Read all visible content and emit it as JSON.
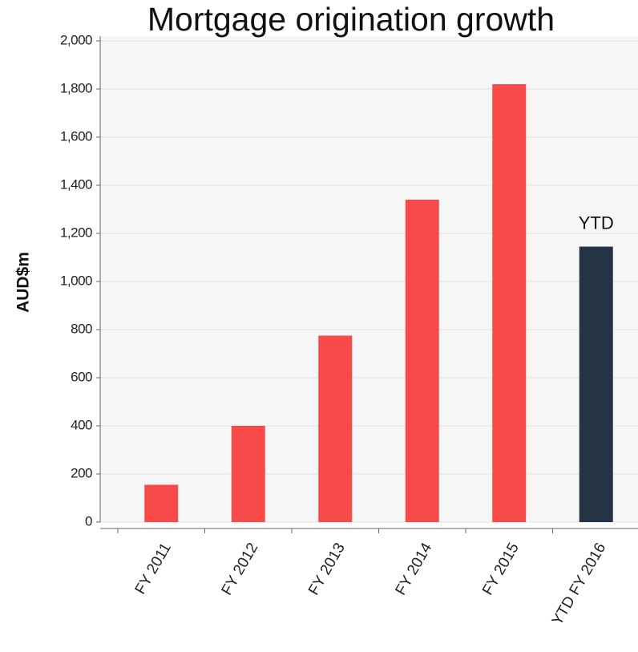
{
  "chart_data": {
    "type": "bar",
    "title": "Mortgage origination growth",
    "y_label": "AUD$m",
    "categories": [
      "FY 2011",
      "FY 2012",
      "FY 2013",
      "FY 2014",
      "FY 2015",
      "YTD FY 2016"
    ],
    "values": [
      155,
      400,
      775,
      1340,
      1820,
      1145
    ],
    "colors": [
      "#f94a4a",
      "#f94a4a",
      "#f94a4a",
      "#f94a4a",
      "#f94a4a",
      "#253444"
    ],
    "annotations": [
      {
        "text": "YTD",
        "category": 5
      }
    ],
    "ylim": [
      0,
      2000
    ],
    "yticks": [
      0,
      200,
      400,
      600,
      800,
      {
        "value": 1000,
        "label": "1,000"
      },
      {
        "value": 1200,
        "label": "1,200"
      },
      {
        "value": 1400,
        "label": "1,400"
      },
      {
        "value": 1600,
        "label": "1,600"
      },
      {
        "value": 1800,
        "label": "1,800"
      },
      {
        "value": 2000,
        "label": "2,000"
      }
    ],
    "grid": true
  }
}
